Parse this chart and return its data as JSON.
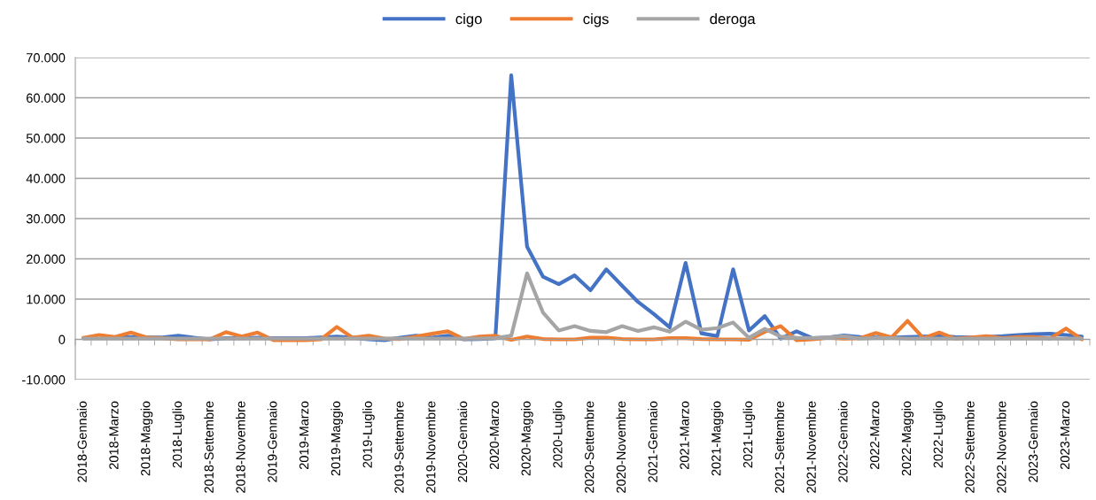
{
  "chart_data": {
    "type": "line",
    "categories": [
      "2018-Gennaio",
      null,
      "2018-Marzo",
      null,
      "2018-Maggio",
      null,
      "2018-Luglio",
      null,
      "2018-Settembre",
      null,
      "2018-Novembre",
      null,
      "2019-Gennaio",
      null,
      "2019-Marzo",
      null,
      "2019-Maggio",
      null,
      "2019-Luglio",
      null,
      "2019-Settembre",
      null,
      "2019-Novembre",
      null,
      "2020-Gennaio",
      null,
      "2020-Marzo",
      null,
      "2020-Maggio",
      null,
      "2020-Luglio",
      null,
      "2020-Settembre",
      null,
      "2020-Novembre",
      null,
      "2021-Gennaio",
      null,
      "2021-Marzo",
      null,
      "2021-Maggio",
      null,
      "2021-Luglio",
      null,
      "2021-Settembre",
      null,
      "2021-Novembre",
      null,
      "2022-Gennaio",
      null,
      "2022-Marzo",
      null,
      "2022-Maggio",
      null,
      "2022-Luglio",
      null,
      "2022-Settembre",
      null,
      "2022-Novembre",
      null,
      "2023-Gennaio",
      null,
      "2023-Marzo",
      null
    ],
    "series": [
      {
        "name": "cigo",
        "color": "#4472c4",
        "values": [
          null,
          null,
          400,
          600,
          500,
          500,
          900,
          400,
          0,
          300,
          300,
          400,
          300,
          300,
          300,
          500,
          700,
          400,
          0,
          -200,
          400,
          900,
          400,
          900,
          0,
          100,
          300,
          65600,
          23000,
          15600,
          13700,
          15900,
          12200,
          17400,
          13300,
          9300,
          6300,
          3000,
          19000,
          1500,
          800,
          17400,
          2200,
          5800,
          200,
          2000,
          300,
          500,
          1000,
          600,
          500,
          400,
          600,
          700,
          800,
          600,
          500,
          600,
          800,
          1100,
          1300,
          1400,
          1100,
          700
        ]
      },
      {
        "name": "cigs",
        "color": "#ed7d31",
        "values": [
          400,
          1100,
          600,
          1700,
          500,
          300,
          0,
          100,
          0,
          1800,
          700,
          1700,
          -200,
          -200,
          -200,
          0,
          3100,
          400,
          900,
          200,
          100,
          700,
          1400,
          2000,
          100,
          700,
          900,
          -100,
          700,
          100,
          0,
          0,
          400,
          400,
          100,
          0,
          0,
          300,
          300,
          100,
          0,
          0,
          -100,
          1900,
          3300,
          -200,
          0,
          400,
          200,
          300,
          1600,
          500,
          4600,
          300,
          1700,
          200,
          500,
          800,
          300,
          600,
          600,
          200,
          2700,
          0
        ]
      },
      {
        "name": "deroga",
        "color": "#a5a5a5",
        "values": [
          200,
          200,
          200,
          200,
          200,
          200,
          200,
          200,
          200,
          200,
          200,
          200,
          200,
          200,
          200,
          200,
          200,
          200,
          200,
          200,
          200,
          200,
          200,
          200,
          200,
          200,
          300,
          900,
          16400,
          6700,
          2200,
          3300,
          2100,
          1800,
          3300,
          2100,
          3000,
          1900,
          4400,
          2400,
          2800,
          4200,
          400,
          2600,
          700,
          400,
          300,
          500,
          800,
          200,
          300,
          300,
          200,
          200,
          200,
          200,
          200,
          200,
          200,
          200,
          200,
          200,
          200,
          200
        ]
      }
    ],
    "ylim": [
      -10000,
      70000
    ],
    "yticks": [
      {
        "value": -10000,
        "label": "-10.000"
      },
      {
        "value": 0,
        "label": "0"
      },
      {
        "value": 10000,
        "label": "10.000"
      },
      {
        "value": 20000,
        "label": "20.000"
      },
      {
        "value": 30000,
        "label": "30.000"
      },
      {
        "value": 40000,
        "label": "40.000"
      },
      {
        "value": 50000,
        "label": "50.000"
      },
      {
        "value": 60000,
        "label": "60.000"
      },
      {
        "value": 70000,
        "label": "70.000"
      }
    ],
    "grid": "y",
    "legend": "top",
    "line_style": "solid",
    "marker": "none"
  }
}
